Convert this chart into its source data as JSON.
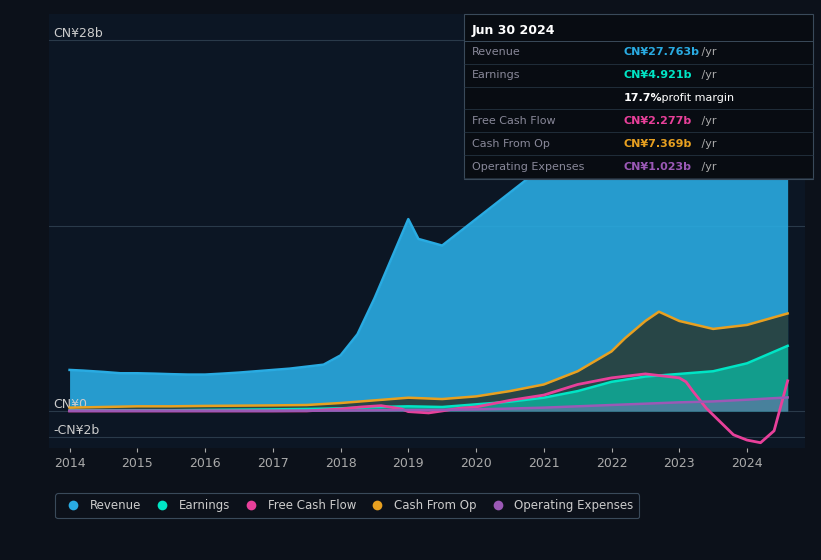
{
  "background_color": "#0c111a",
  "plot_bg_color": "#0c1624",
  "ylim": [
    -2.8,
    30
  ],
  "xlim": [
    2013.7,
    2024.85
  ],
  "xticks": [
    2014,
    2015,
    2016,
    2017,
    2018,
    2019,
    2020,
    2021,
    2022,
    2023,
    2024
  ],
  "colors": {
    "revenue": "#29abe2",
    "earnings": "#00e5c5",
    "free_cash_flow": "#e8409a",
    "cash_from_op": "#e8a020",
    "operating_expenses": "#9b59b6"
  },
  "revenue": {
    "x": [
      2014.0,
      2014.2,
      2014.5,
      2014.75,
      2015.0,
      2015.25,
      2015.5,
      2015.75,
      2016.0,
      2016.25,
      2016.5,
      2016.75,
      2017.0,
      2017.25,
      2017.5,
      2017.75,
      2018.0,
      2018.25,
      2018.5,
      2018.75,
      2019.0,
      2019.15,
      2019.5,
      2019.75,
      2020.0,
      2020.25,
      2020.5,
      2020.75,
      2021.0,
      2021.25,
      2021.5,
      2021.75,
      2022.0,
      2022.25,
      2022.5,
      2022.75,
      2023.0,
      2023.25,
      2023.5,
      2023.75,
      2024.0,
      2024.4,
      2024.6
    ],
    "y": [
      3.1,
      3.05,
      2.95,
      2.85,
      2.85,
      2.82,
      2.78,
      2.75,
      2.75,
      2.82,
      2.9,
      3.0,
      3.1,
      3.2,
      3.35,
      3.5,
      4.2,
      5.8,
      8.5,
      11.5,
      14.5,
      13.0,
      12.5,
      13.5,
      14.5,
      15.5,
      16.5,
      17.5,
      18.5,
      19.5,
      20.5,
      21.5,
      22.5,
      23.5,
      24.2,
      23.8,
      23.2,
      23.8,
      24.5,
      25.5,
      26.5,
      27.5,
      27.763
    ]
  },
  "earnings": {
    "x": [
      2014.0,
      2014.5,
      2015.0,
      2015.5,
      2016.0,
      2016.5,
      2017.0,
      2017.5,
      2018.0,
      2018.5,
      2019.0,
      2019.5,
      2020.0,
      2020.5,
      2021.0,
      2021.5,
      2022.0,
      2022.5,
      2023.0,
      2023.5,
      2024.0,
      2024.6
    ],
    "y": [
      0.05,
      0.05,
      0.05,
      0.05,
      0.08,
      0.1,
      0.12,
      0.15,
      0.2,
      0.3,
      0.35,
      0.3,
      0.5,
      0.7,
      1.0,
      1.5,
      2.2,
      2.6,
      2.8,
      3.0,
      3.6,
      4.921
    ]
  },
  "free_cash_flow": {
    "x": [
      2014.0,
      2014.5,
      2015.0,
      2015.5,
      2016.0,
      2016.5,
      2017.0,
      2017.5,
      2018.0,
      2018.3,
      2018.6,
      2018.9,
      2019.0,
      2019.3,
      2019.5,
      2019.75,
      2020.0,
      2020.5,
      2021.0,
      2021.5,
      2022.0,
      2022.5,
      2023.0,
      2023.1,
      2023.2,
      2023.4,
      2023.6,
      2023.8,
      2024.0,
      2024.2,
      2024.4,
      2024.6
    ],
    "y": [
      0.0,
      0.0,
      0.0,
      0.0,
      0.0,
      0.0,
      0.0,
      0.0,
      0.15,
      0.3,
      0.4,
      0.15,
      -0.05,
      -0.15,
      0.0,
      0.2,
      0.3,
      0.8,
      1.2,
      2.0,
      2.5,
      2.8,
      2.5,
      2.2,
      1.5,
      0.2,
      -0.8,
      -1.8,
      -2.2,
      -2.4,
      -1.5,
      2.277
    ]
  },
  "cash_from_op": {
    "x": [
      2014.0,
      2014.5,
      2015.0,
      2015.5,
      2016.0,
      2016.5,
      2017.0,
      2017.5,
      2018.0,
      2018.5,
      2019.0,
      2019.5,
      2020.0,
      2020.5,
      2021.0,
      2021.5,
      2022.0,
      2022.2,
      2022.5,
      2022.7,
      2023.0,
      2023.5,
      2024.0,
      2024.6
    ],
    "y": [
      0.25,
      0.3,
      0.35,
      0.35,
      0.38,
      0.4,
      0.42,
      0.45,
      0.6,
      0.8,
      1.0,
      0.9,
      1.1,
      1.5,
      2.0,
      3.0,
      4.5,
      5.5,
      6.8,
      7.5,
      6.8,
      6.2,
      6.5,
      7.369
    ]
  },
  "operating_expenses": {
    "x": [
      2014.0,
      2014.5,
      2015.0,
      2015.5,
      2016.0,
      2016.5,
      2017.0,
      2017.5,
      2018.0,
      2018.5,
      2019.0,
      2019.5,
      2020.0,
      2020.5,
      2021.0,
      2021.5,
      2022.0,
      2022.5,
      2023.0,
      2023.5,
      2024.0,
      2024.6
    ],
    "y": [
      0.0,
      0.0,
      0.0,
      0.0,
      0.0,
      0.0,
      0.0,
      0.02,
      0.03,
      0.05,
      0.07,
      0.08,
      0.12,
      0.18,
      0.25,
      0.35,
      0.45,
      0.55,
      0.65,
      0.72,
      0.85,
      1.023
    ]
  },
  "info_box": {
    "date": "Jun 30 2024",
    "rows": [
      {
        "label": "Revenue",
        "value": "CN¥27.763b",
        "suffix": " /yr",
        "color": "#29abe2"
      },
      {
        "label": "Earnings",
        "value": "CN¥4.921b",
        "suffix": " /yr",
        "color": "#00e5c5"
      },
      {
        "label": "",
        "value": "17.7%",
        "suffix": " profit margin",
        "color": "#ffffff"
      },
      {
        "label": "Free Cash Flow",
        "value": "CN¥2.277b",
        "suffix": " /yr",
        "color": "#e8409a"
      },
      {
        "label": "Cash From Op",
        "value": "CN¥7.369b",
        "suffix": " /yr",
        "color": "#e8a020"
      },
      {
        "label": "Operating Expenses",
        "value": "CN¥1.023b",
        "suffix": " /yr",
        "color": "#9b59b6"
      }
    ]
  },
  "legend_items": [
    {
      "label": "Revenue",
      "color": "#29abe2"
    },
    {
      "label": "Earnings",
      "color": "#00e5c5"
    },
    {
      "label": "Free Cash Flow",
      "color": "#e8409a"
    },
    {
      "label": "Cash From Op",
      "color": "#e8a020"
    },
    {
      "label": "Operating Expenses",
      "color": "#9b59b6"
    }
  ]
}
